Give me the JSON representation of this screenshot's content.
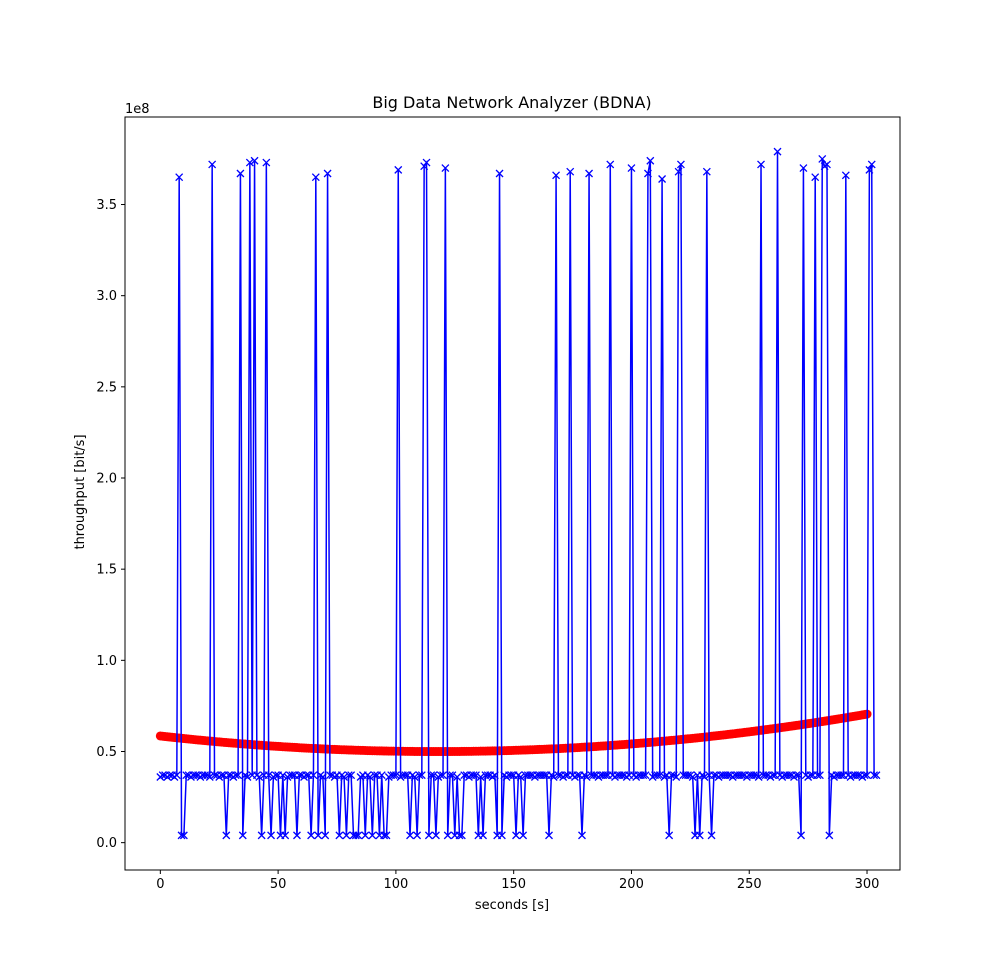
{
  "chart_data": {
    "type": "line",
    "title": "Big Data Network Analyzer (BDNA)",
    "xlabel": "seconds [s]",
    "ylabel": "throughput [bit/s]",
    "y_offset_label": "1e8",
    "xlim": [
      -15,
      314
    ],
    "ylim": [
      -0.15,
      3.98
    ],
    "y_scale_factor": 100000000,
    "grid": false,
    "x_ticks": [
      {
        "value": 0,
        "label": "0"
      },
      {
        "value": 50,
        "label": "50"
      },
      {
        "value": 100,
        "label": "100"
      },
      {
        "value": 150,
        "label": "150"
      },
      {
        "value": 200,
        "label": "200"
      },
      {
        "value": 250,
        "label": "250"
      },
      {
        "value": 300,
        "label": "300"
      }
    ],
    "y_ticks": [
      {
        "value": 0.0,
        "label": "0.0"
      },
      {
        "value": 0.5,
        "label": "0.5"
      },
      {
        "value": 1.0,
        "label": "1.0"
      },
      {
        "value": 1.5,
        "label": "1.5"
      },
      {
        "value": 2.0,
        "label": "2.0"
      },
      {
        "value": 2.5,
        "label": "2.5"
      },
      {
        "value": 3.0,
        "label": "3.0"
      },
      {
        "value": 3.5,
        "label": "3.5"
      }
    ],
    "series": [
      {
        "kind": "line-x-markers",
        "color": "#0000ff",
        "x_start": 0,
        "x_step": 1,
        "y": [
          0.36,
          0.37,
          0.37,
          0.36,
          0.37,
          0.37,
          0.36,
          0.37,
          3.65,
          0.04,
          0.04,
          0.37,
          0.37,
          0.36,
          0.37,
          0.37,
          0.37,
          0.36,
          0.37,
          0.37,
          0.37,
          0.36,
          3.72,
          0.37,
          0.37,
          0.36,
          0.37,
          0.37,
          0.04,
          0.37,
          0.37,
          0.36,
          0.37,
          0.37,
          3.67,
          0.04,
          0.37,
          0.36,
          3.73,
          0.37,
          3.74,
          0.37,
          0.36,
          0.04,
          0.37,
          3.73,
          0.37,
          0.04,
          0.36,
          0.37,
          0.37,
          0.04,
          0.37,
          0.04,
          0.36,
          0.37,
          0.37,
          0.37,
          0.04,
          0.37,
          0.37,
          0.36,
          0.37,
          0.37,
          0.04,
          0.37,
          3.65,
          0.04,
          0.37,
          0.36,
          0.04,
          3.67,
          0.37,
          0.37,
          0.36,
          0.37,
          0.04,
          0.37,
          0.36,
          0.04,
          0.37,
          0.37,
          0.04,
          0.04,
          0.04,
          0.36,
          0.37,
          0.04,
          0.37,
          0.36,
          0.04,
          0.37,
          0.37,
          0.04,
          0.37,
          0.04,
          0.04,
          0.36,
          0.37,
          0.37,
          0.37,
          3.69,
          0.36,
          0.37,
          0.37,
          0.37,
          0.04,
          0.37,
          0.36,
          0.04,
          0.37,
          0.37,
          3.71,
          3.73,
          0.04,
          0.37,
          0.37,
          0.04,
          0.36,
          0.37,
          0.37,
          3.7,
          0.04,
          0.37,
          0.37,
          0.04,
          0.36,
          0.04,
          0.04,
          0.37,
          0.37,
          0.36,
          0.37,
          0.37,
          0.37,
          0.04,
          0.36,
          0.04,
          0.37,
          0.37,
          0.37,
          0.36,
          0.37,
          0.04,
          3.67,
          0.04,
          0.37,
          0.36,
          0.37,
          0.37,
          0.37,
          0.04,
          0.37,
          0.36,
          0.04,
          0.37,
          0.37,
          0.37,
          0.37,
          0.36,
          0.37,
          0.37,
          0.37,
          0.37,
          0.37,
          0.04,
          0.37,
          0.36,
          3.66,
          0.37,
          0.37,
          0.36,
          0.37,
          0.37,
          3.68,
          0.37,
          0.36,
          0.37,
          0.37,
          0.04,
          0.37,
          0.36,
          3.67,
          0.37,
          0.37,
          0.37,
          0.36,
          0.37,
          0.37,
          0.37,
          0.37,
          3.72,
          0.37,
          0.36,
          0.37,
          0.37,
          0.37,
          0.37,
          0.36,
          0.37,
          3.7,
          0.37,
          0.36,
          0.37,
          0.37,
          0.37,
          0.37,
          3.67,
          3.74,
          0.36,
          0.37,
          0.37,
          0.37,
          3.64,
          0.36,
          0.37,
          0.04,
          0.37,
          0.37,
          0.36,
          3.68,
          3.72,
          0.37,
          0.37,
          0.37,
          0.37,
          0.36,
          0.04,
          0.37,
          0.04,
          0.37,
          0.36,
          3.68,
          0.37,
          0.04,
          0.37,
          0.37,
          0.36,
          0.37,
          0.37,
          0.37,
          0.37,
          0.37,
          0.36,
          0.37,
          0.37,
          0.37,
          0.37,
          0.37,
          0.36,
          0.37,
          0.37,
          0.37,
          0.37,
          0.36,
          3.72,
          0.37,
          0.37,
          0.37,
          0.36,
          0.37,
          0.37,
          3.79,
          0.37,
          0.36,
          0.37,
          0.37,
          0.37,
          0.37,
          0.36,
          0.37,
          0.37,
          0.04,
          3.7,
          0.37,
          0.36,
          0.37,
          0.37,
          3.65,
          0.37,
          0.37,
          3.75,
          3.71,
          3.72,
          0.04,
          0.37,
          0.36,
          0.37,
          0.37,
          0.37,
          0.37,
          3.66,
          0.37,
          0.36,
          0.37,
          0.37,
          0.37,
          0.37,
          0.36,
          0.37,
          0.37,
          3.69,
          3.72,
          0.37,
          0.37
        ]
      },
      {
        "kind": "dots",
        "color": "#ff0000",
        "x_start": 0,
        "x_end": 300,
        "x_step": 1,
        "quadratic_through_points": [
          [
            0,
            0.585
          ],
          [
            125,
            0.5
          ],
          [
            300,
            0.705
          ]
        ]
      }
    ]
  }
}
